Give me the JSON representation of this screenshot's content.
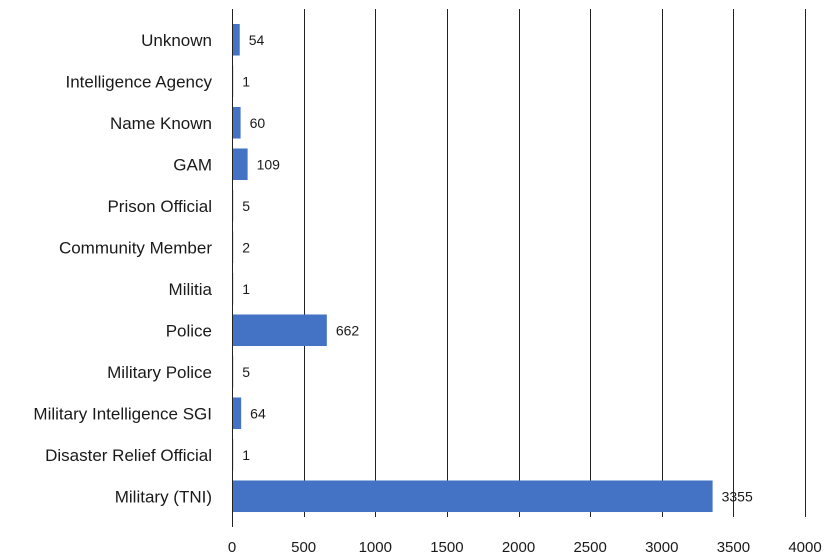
{
  "chart_data": {
    "type": "bar",
    "orientation": "horizontal",
    "title": "",
    "xlabel": "",
    "ylabel": "",
    "categories": [
      "Unknown",
      "Intelligence Agency",
      "Name Known",
      "GAM",
      "Prison Official",
      "Community Member",
      "Militia",
      "Police",
      "Military Police",
      "Military Intelligence SGI",
      "Disaster Relief Official",
      "Military (TNI)"
    ],
    "values": [
      54,
      1,
      60,
      109,
      5,
      2,
      1,
      662,
      5,
      64,
      1,
      3355
    ],
    "xlim": [
      0,
      4000
    ],
    "xticks": [
      0,
      500,
      1000,
      1500,
      2000,
      2500,
      3000,
      3500,
      4000
    ],
    "grid": "vertical",
    "legend": "none",
    "bar_color": "#4472C4",
    "show_data_labels": true
  }
}
